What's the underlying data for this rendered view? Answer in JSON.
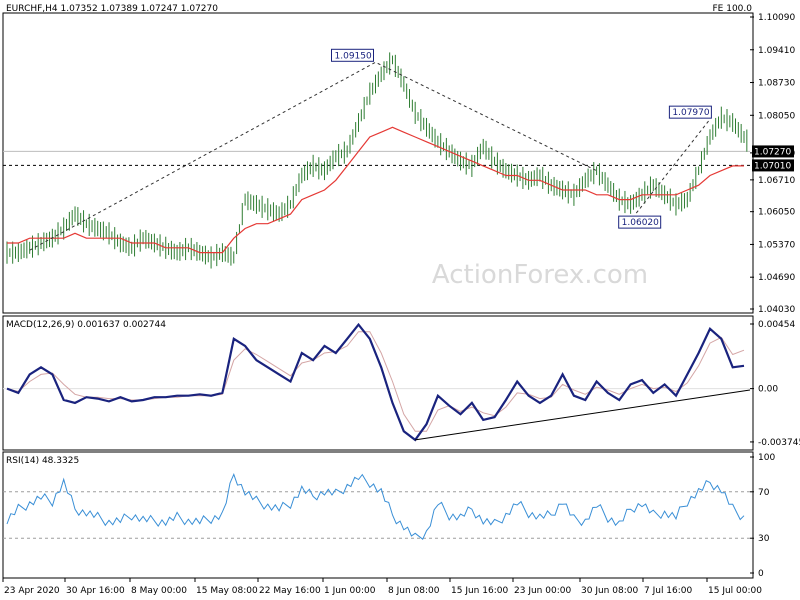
{
  "header": {
    "title": "EURCHF,H4  1.07352 1.07389 1.07247 1.07270",
    "fe_label": "FE 100.0"
  },
  "watermark": "ActionForex.com",
  "colors": {
    "price_bar": "#2e7d32",
    "sma": "#e53935",
    "macd": "#1a237e",
    "signal": "#d4a5a5",
    "rsi": "#3a8fd6",
    "trendline": "#000000",
    "level_label_bg": "#000000"
  },
  "chart_data": [
    {
      "id": "price",
      "type": "bar",
      "title": "EURCHF,H4  1.07352 1.07389 1.07247 1.07270",
      "ylim": [
        1.0403,
        1.1009
      ],
      "y_ticks": [
        "1.10090",
        "1.09410",
        "1.08730",
        "1.08050",
        "1.07270",
        "1.06710",
        "1.06050",
        "1.05370",
        "1.04690",
        "1.04030"
      ],
      "y_tick_values": [
        1.1009,
        1.0941,
        1.0873,
        1.0805,
        1.0727,
        1.0671,
        1.0605,
        1.0537,
        1.0469,
        1.0403
      ],
      "current_price": "1.07270",
      "horizontal_level": "1.07010",
      "horizontal_level_value": 1.0701,
      "annotations": [
        {
          "label": "1.09150",
          "value": 1.0915
        },
        {
          "label": "1.07970",
          "value": 1.0797
        },
        {
          "label": "1.06020",
          "value": 1.0602
        }
      ],
      "close_series": [
        1.052,
        1.053,
        1.054,
        1.055,
        1.057,
        1.06,
        1.058,
        1.057,
        1.056,
        1.054,
        1.053,
        1.055,
        1.054,
        1.053,
        1.052,
        1.053,
        1.052,
        1.051,
        1.052,
        1.051,
        1.063,
        1.062,
        1.061,
        1.06,
        1.062,
        1.068,
        1.07,
        1.069,
        1.072,
        1.073,
        1.079,
        1.085,
        1.089,
        1.092,
        1.087,
        1.081,
        1.078,
        1.075,
        1.073,
        1.071,
        1.07,
        1.074,
        1.071,
        1.069,
        1.068,
        1.067,
        1.068,
        1.066,
        1.065,
        1.064,
        1.067,
        1.069,
        1.066,
        1.063,
        1.062,
        1.064,
        1.066,
        1.064,
        1.062,
        1.063,
        1.069,
        1.076,
        1.08,
        1.079,
        1.076,
        1.073
      ],
      "sma_series": [
        1.054,
        1.054,
        1.055,
        1.055,
        1.055,
        1.055,
        1.056,
        1.055,
        1.055,
        1.055,
        1.055,
        1.054,
        1.054,
        1.054,
        1.053,
        1.053,
        1.053,
        1.052,
        1.052,
        1.052,
        1.055,
        1.057,
        1.058,
        1.058,
        1.059,
        1.06,
        1.063,
        1.064,
        1.065,
        1.067,
        1.07,
        1.073,
        1.076,
        1.077,
        1.078,
        1.077,
        1.076,
        1.075,
        1.074,
        1.073,
        1.072,
        1.071,
        1.07,
        1.069,
        1.068,
        1.068,
        1.067,
        1.067,
        1.066,
        1.065,
        1.065,
        1.065,
        1.064,
        1.064,
        1.063,
        1.063,
        1.064,
        1.064,
        1.064,
        1.064,
        1.065,
        1.066,
        1.068,
        1.069,
        1.07,
        1.07
      ]
    },
    {
      "id": "macd",
      "type": "line",
      "title": "MACD(12,26,9) 0.001637 0.002744",
      "ylim": [
        -0.00375,
        0.00454
      ],
      "y_ticks": [
        "0.00454",
        "0.00",
        "-0.003745"
      ],
      "y_tick_values": [
        0.00454,
        0.0,
        -0.003745
      ],
      "series": [
        {
          "values": [
            0.0,
            -0.0003,
            0.001,
            0.0015,
            0.001,
            -0.0008,
            -0.001,
            -0.0006,
            -0.0007,
            -0.0009,
            -0.0006,
            -0.0009,
            -0.0008,
            -0.0006,
            -0.0006,
            -0.0005,
            -0.0005,
            -0.0004,
            -0.0005,
            -0.0003,
            0.0035,
            0.003,
            0.002,
            0.0015,
            0.001,
            0.0005,
            0.0025,
            0.002,
            0.003,
            0.0025,
            0.0035,
            0.0045,
            0.0035,
            0.0015,
            -0.001,
            -0.003,
            -0.0036,
            -0.0025,
            -0.0005,
            -0.0012,
            -0.0018,
            -0.001,
            -0.0022,
            -0.002,
            -0.0008,
            0.0005,
            -0.0005,
            -0.001,
            -0.0005,
            0.001,
            -0.0005,
            -0.0008,
            0.0005,
            -0.0003,
            -0.0008,
            0.0003,
            0.0006,
            -0.0003,
            0.0003,
            -0.0005,
            0.001,
            0.0025,
            0.0042,
            0.0035,
            0.0015,
            0.0016
          ]
        },
        {
          "values": [
            0.0,
            -0.0002,
            0.0005,
            0.001,
            0.0011,
            0.0003,
            -0.0004,
            -0.0006,
            -0.0006,
            -0.0007,
            -0.0007,
            -0.0008,
            -0.0008,
            -0.0007,
            -0.0006,
            -0.0006,
            -0.0005,
            -0.0005,
            -0.0005,
            -0.0004,
            0.002,
            0.0028,
            0.0024,
            0.0019,
            0.0014,
            0.0009,
            0.0018,
            0.002,
            0.0025,
            0.0026,
            0.003,
            0.004,
            0.004,
            0.0025,
            0.0005,
            -0.0018,
            -0.003,
            -0.003,
            -0.0015,
            -0.0012,
            -0.0016,
            -0.0013,
            -0.0017,
            -0.0019,
            -0.0013,
            -0.0003,
            -0.0004,
            -0.0007,
            -0.0006,
            0.0003,
            -0.0001,
            -0.0004,
            0.0001,
            -0.0001,
            -0.0004,
            0.0,
            0.0003,
            0.0,
            0.0001,
            -0.0002,
            0.0004,
            0.0016,
            0.0032,
            0.0036,
            0.0024,
            0.0027
          ]
        }
      ]
    },
    {
      "id": "rsi",
      "type": "line",
      "title": "RSI(14) 48.3325",
      "ylim": [
        0,
        100
      ],
      "y_ticks": [
        "100",
        "70",
        "30",
        "0"
      ],
      "y_tick_values": [
        100,
        70,
        30,
        0
      ],
      "series": [
        {
          "values": [
            45,
            55,
            60,
            65,
            62,
            78,
            55,
            52,
            48,
            44,
            45,
            50,
            46,
            45,
            44,
            48,
            45,
            44,
            47,
            50,
            85,
            70,
            62,
            58,
            55,
            60,
            72,
            66,
            70,
            68,
            75,
            82,
            78,
            70,
            50,
            40,
            30,
            35,
            60,
            50,
            48,
            55,
            45,
            42,
            50,
            60,
            52,
            48,
            50,
            62,
            46,
            45,
            58,
            48,
            42,
            55,
            60,
            50,
            52,
            48,
            62,
            70,
            78,
            72,
            55,
            48
          ]
        }
      ]
    }
  ],
  "x_axis": {
    "labels": [
      "23 Apr 2020",
      "30 Apr 16:00",
      "8 May 00:00",
      "15 May 08:00",
      "22 May 16:00",
      "1 Jun 00:00",
      "8 Jun 08:00",
      "15 Jun 16:00",
      "23 Jun 00:00",
      "30 Jun 08:00",
      "7 Jul 16:00",
      "15 Jul 00:00"
    ]
  }
}
